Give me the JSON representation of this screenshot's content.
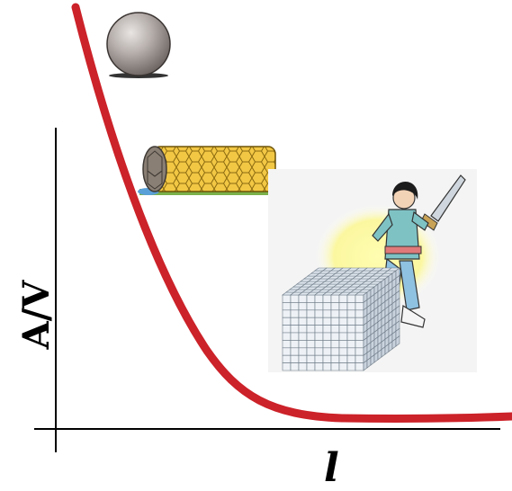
{
  "diagram": {
    "y_axis_label": "A/V",
    "x_axis_label": "l",
    "curve_color": "#cc2229",
    "illustrations": [
      "sphere",
      "hexagonal-cylinder",
      "woman-with-saw",
      "cube-of-small-cubes"
    ]
  }
}
